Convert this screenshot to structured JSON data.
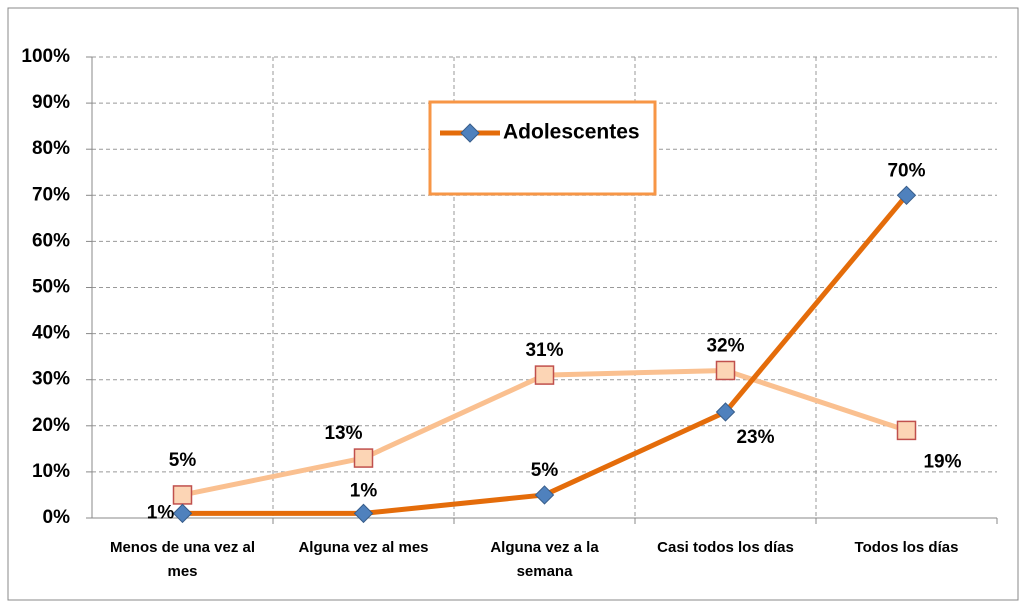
{
  "chart_data": {
    "type": "line",
    "categories": [
      "Menos de una vez al mes",
      "Alguna vez al mes",
      "Alguna vez a la semana",
      "Casi todos los días",
      "Todos los días"
    ],
    "series": [
      {
        "name": "Adolescentes",
        "color": "#e46c0a",
        "marker": "diamond",
        "marker_color": "#4f81bd",
        "values": [
          1,
          1,
          5,
          23,
          70
        ],
        "value_labels": [
          "1%",
          "1%",
          "5%",
          "23%",
          "70%"
        ]
      },
      {
        "color": "#fac090",
        "marker": "square",
        "marker_color": "#fcd5b5",
        "marker_edge": "#c0504d",
        "values": [
          5,
          13,
          31,
          32,
          19
        ],
        "value_labels": [
          "5%",
          "13%",
          "31%",
          "32%",
          "19%"
        ]
      }
    ],
    "ylim": [
      0,
      100
    ],
    "yticks": [
      {
        "value": 0,
        "label": "0%"
      },
      {
        "value": 10,
        "label": "10%"
      },
      {
        "value": 20,
        "label": "20%"
      },
      {
        "value": 30,
        "label": "30%"
      },
      {
        "value": 40,
        "label": "40%"
      },
      {
        "value": 50,
        "label": "50%"
      },
      {
        "value": 60,
        "label": "60%"
      },
      {
        "value": 70,
        "label": "70%"
      },
      {
        "value": 80,
        "label": "80%"
      },
      {
        "value": 90,
        "label": "90%"
      },
      {
        "value": 100,
        "label": "100%"
      }
    ],
    "grid": true
  }
}
